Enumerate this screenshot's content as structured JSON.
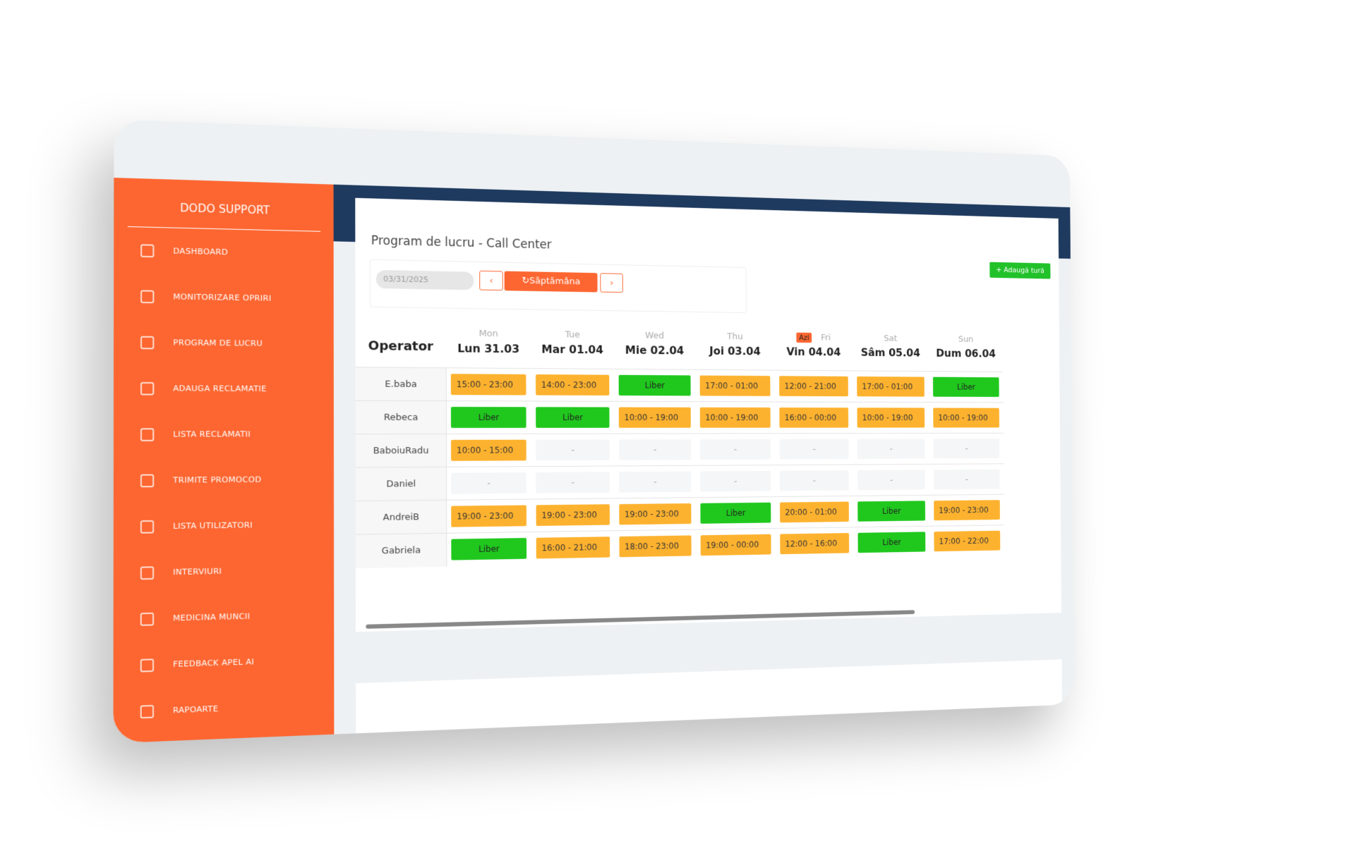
{
  "sidebar": {
    "brand": "DODO SUPPORT",
    "items": [
      "DASHBOARD",
      "MONITORIZARE OPRIRI",
      "PROGRAM DE LUCRU",
      "ADAUGA RECLAMATIE",
      "LISTA RECLAMATII",
      "TRIMITE PROMOCOD",
      "LISTA UTILIZATORI",
      "INTERVIURI",
      "MEDICINA MUNCII",
      "FEEDBACK APEL AI",
      "RAPOARTE"
    ]
  },
  "header": {
    "title": "Program de lucru - Call Center",
    "date": "03/31/2025",
    "current_week": "Săptămâna curentă",
    "add_shift": "Adaugă tură"
  },
  "table": {
    "operator_label": "Operator",
    "today_badge": "Azi",
    "today_index": 4,
    "days": [
      {
        "en": "Mon",
        "label": "Lun 31.03"
      },
      {
        "en": "Tue",
        "label": "Mar 01.04"
      },
      {
        "en": "Wed",
        "label": "Mie 02.04"
      },
      {
        "en": "Thu",
        "label": "Joi 03.04"
      },
      {
        "en": "Fri",
        "label": "Vin 04.04"
      },
      {
        "en": "Sat",
        "label": "Sâm 05.04"
      },
      {
        "en": "Sun",
        "label": "Dum 06.04"
      }
    ],
    "rows": [
      {
        "name": "E.baba",
        "cells": [
          "15:00 - 23:00",
          "14:00 - 23:00",
          "Liber",
          "17:00 - 01:00",
          "12:00 - 21:00",
          "17:00 - 01:00",
          "Liber"
        ]
      },
      {
        "name": "Rebeca",
        "cells": [
          "Liber",
          "Liber",
          "10:00 - 19:00",
          "10:00 - 19:00",
          "16:00 - 00:00",
          "10:00 - 19:00",
          "10:00 - 19:00"
        ]
      },
      {
        "name": "BaboiuRadu",
        "cells": [
          "10:00 - 15:00",
          "-",
          "-",
          "-",
          "-",
          "-",
          "-"
        ]
      },
      {
        "name": "Daniel",
        "cells": [
          "-",
          "-",
          "-",
          "-",
          "-",
          "-",
          "-"
        ]
      },
      {
        "name": "AndreiB",
        "cells": [
          "19:00 - 23:00",
          "19:00 - 23:00",
          "19:00 - 23:00",
          "Liber",
          "20:00 - 01:00",
          "Liber",
          "19:00 - 23:00"
        ]
      },
      {
        "name": "Gabriela",
        "cells": [
          "Liber",
          "16:00 - 21:00",
          "18:00 - 23:00",
          "19:00 - 00:00",
          "12:00 - 16:00",
          "Liber",
          "17:00 - 22:00"
        ]
      }
    ]
  }
}
